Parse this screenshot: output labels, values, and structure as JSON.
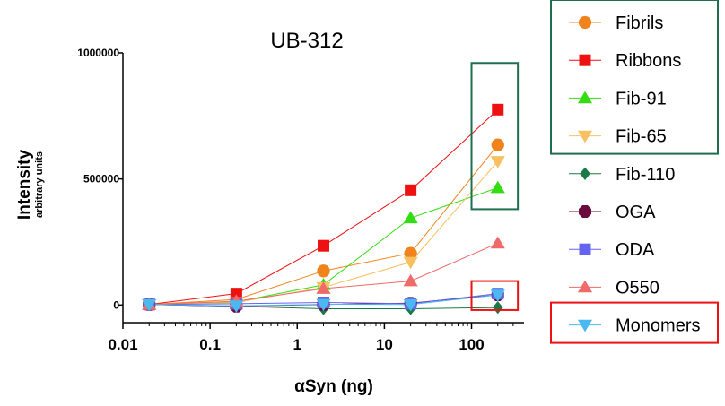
{
  "chart_data": {
    "type": "line",
    "title": "UB-312",
    "xlabel": "αSyn (ng)",
    "ylabel": "Intensity",
    "ylabel_sub": "arbitrary units",
    "xscale": "log",
    "xlim": [
      0.01,
      400
    ],
    "ylim": [
      -70000,
      1000000
    ],
    "x_ticks": [
      0.01,
      0.1,
      1,
      10,
      100
    ],
    "x_tick_labels": [
      "0.01",
      "0.1",
      "1",
      "10",
      "100"
    ],
    "y_ticks": [
      0,
      500000,
      1000000
    ],
    "y_tick_labels": [
      "0",
      "500000",
      "1000000"
    ],
    "x": [
      0.02,
      0.2,
      2,
      20,
      200
    ],
    "series": [
      {
        "name": "Fibrils",
        "marker": "circle",
        "color": "#f0841c",
        "values": [
          2000,
          22000,
          135000,
          205000,
          635000
        ]
      },
      {
        "name": "Ribbons",
        "marker": "square",
        "color": "#ee1111",
        "values": [
          2000,
          45000,
          235000,
          455000,
          775000
        ]
      },
      {
        "name": "Fib-91",
        "marker": "triangle",
        "color": "#33dd11",
        "values": [
          2000,
          12000,
          80000,
          345000,
          465000
        ]
      },
      {
        "name": "Fib-65",
        "marker": "tri-down",
        "color": "#f7c060",
        "values": [
          2000,
          10000,
          70000,
          170000,
          570000
        ]
      },
      {
        "name": "Fib-110",
        "marker": "diamond",
        "color": "#1a7a45",
        "values": [
          2000,
          -5000,
          -15000,
          -15000,
          -10000
        ]
      },
      {
        "name": "OGA",
        "marker": "octagon",
        "color": "#6b0a3c",
        "values": [
          2000,
          -5000,
          2000,
          7000,
          40000
        ]
      },
      {
        "name": "ODA",
        "marker": "square",
        "color": "#6464f0",
        "values": [
          2000,
          5000,
          10000,
          5000,
          45000
        ]
      },
      {
        "name": "O550",
        "marker": "triangle",
        "color": "#f06a6a",
        "values": [
          2000,
          15000,
          65000,
          95000,
          245000
        ]
      },
      {
        "name": "Monomers",
        "marker": "tri-down",
        "color": "#4bb8f0",
        "values": [
          2000,
          -3000,
          3000,
          2000,
          40000
        ]
      }
    ],
    "annotations": [
      {
        "type": "box",
        "color": "#1f6e4e",
        "x_range": [
          100,
          340
        ],
        "y_range": [
          380000,
          960000
        ],
        "legend_items": [
          "Fibrils",
          "Ribbons",
          "Fib-91",
          "Fib-65"
        ]
      },
      {
        "type": "box",
        "color": "#ee1111",
        "x_range": [
          100,
          340
        ],
        "y_range": [
          -20000,
          95000
        ],
        "legend_items": [
          "Monomers"
        ]
      }
    ]
  }
}
